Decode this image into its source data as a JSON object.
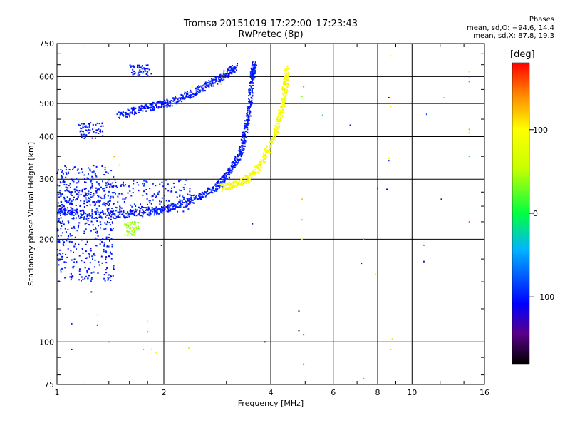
{
  "header": {
    "title_line1": "Tromsø 20151019 17:22:00–17:23:43",
    "title_line2": "RwPretec (8p)",
    "stats_title": "Phases",
    "stats_o": "mean, sd,O: −94.6, 14.4",
    "stats_x": "mean, sd,X:  87.8, 19.3"
  },
  "chart_data": {
    "type": "scatter",
    "xlabel": "Frequency [MHz]",
    "ylabel": "Stationary phase Virtual Height [km]",
    "xscale": "log",
    "yscale": "log",
    "xlim": [
      1,
      16
    ],
    "ylim": [
      75,
      750
    ],
    "xticks": [
      1,
      2,
      4,
      6,
      8,
      10,
      16
    ],
    "xtick_labels": [
      "1",
      "2",
      "4",
      "6",
      "8",
      "10",
      "16"
    ],
    "yticks": [
      75,
      100,
      200,
      300,
      400,
      500,
      600,
      750
    ],
    "ytick_labels": [
      "75",
      "100",
      "200",
      "300",
      "400",
      "500",
      "600",
      "750"
    ],
    "grid": true,
    "colorbar": {
      "label": "[deg]",
      "range": [
        -180,
        180
      ],
      "ticks": [
        -100,
        0,
        100
      ],
      "tick_labels": [
        "−100",
        "0",
        "100"
      ]
    },
    "traces": [
      {
        "name": "O-mode F-layer trace (low)",
        "phase": -100,
        "points": [
          [
            1.0,
            242
          ],
          [
            1.2,
            236
          ],
          [
            1.5,
            236
          ],
          [
            1.8,
            240
          ],
          [
            2.0,
            245
          ],
          [
            2.3,
            256
          ],
          [
            2.6,
            270
          ],
          [
            2.9,
            292
          ],
          [
            3.1,
            320
          ],
          [
            3.3,
            360
          ],
          [
            3.4,
            420
          ],
          [
            3.5,
            500
          ],
          [
            3.55,
            600
          ],
          [
            3.6,
            650
          ]
        ]
      },
      {
        "name": "O-mode trace (upper)",
        "phase": -100,
        "points": [
          [
            1.5,
            460
          ],
          [
            1.7,
            480
          ],
          [
            1.9,
            493
          ],
          [
            2.1,
            505
          ],
          [
            2.4,
            535
          ],
          [
            2.7,
            570
          ],
          [
            3.0,
            610
          ],
          [
            3.2,
            640
          ]
        ]
      },
      {
        "name": "X-mode trace",
        "phase": 95,
        "points": [
          [
            2.9,
            283
          ],
          [
            3.2,
            290
          ],
          [
            3.5,
            305
          ],
          [
            3.8,
            340
          ],
          [
            4.1,
            400
          ],
          [
            4.3,
            480
          ],
          [
            4.4,
            560
          ],
          [
            4.45,
            630
          ]
        ]
      }
    ],
    "clusters": [
      {
        "name": "low-frequency spread echoes",
        "phase": -100,
        "x": [
          1.0,
          1.45
        ],
        "y": [
          150,
          330
        ]
      },
      {
        "name": "spread echoes near 300 km",
        "phase": -100,
        "x": [
          1.0,
          2.4
        ],
        "y": [
          240,
          300
        ]
      },
      {
        "name": "patch near 400 km",
        "phase": -100,
        "x": [
          1.15,
          1.35
        ],
        "y": [
          395,
          440
        ]
      },
      {
        "name": "patch near 600 km",
        "phase": -100,
        "x": [
          1.6,
          1.85
        ],
        "y": [
          600,
          650
        ]
      },
      {
        "name": "patch near 210 km",
        "phase": 40,
        "x": [
          1.55,
          1.7
        ],
        "y": [
          205,
          225
        ]
      }
    ],
    "scattered_points": [
      [
        8.7,
        690,
        90
      ],
      [
        8.6,
        520,
        -120
      ],
      [
        8.7,
        490,
        110
      ],
      [
        8.6,
        345,
        60
      ],
      [
        8.6,
        340,
        -100
      ],
      [
        11.0,
        465,
        -80
      ],
      [
        12.3,
        520,
        40
      ],
      [
        14.5,
        620,
        60
      ],
      [
        14.5,
        600,
        -90
      ],
      [
        14.5,
        580,
        150
      ],
      [
        14.5,
        420,
        130
      ],
      [
        14.5,
        410,
        120
      ],
      [
        14.5,
        350,
        10
      ],
      [
        14.5,
        225,
        150
      ],
      [
        6.7,
        432,
        -140
      ],
      [
        8.0,
        282,
        -130
      ],
      [
        8.5,
        280,
        -110
      ],
      [
        12.1,
        262,
        -140
      ],
      [
        10.8,
        192,
        150
      ],
      [
        10.8,
        172,
        -130
      ],
      [
        7.3,
        200,
        -20
      ],
      [
        7.2,
        170,
        -110
      ],
      [
        7.9,
        158,
        100
      ],
      [
        4.95,
        560,
        -10
      ],
      [
        4.9,
        525,
        40
      ],
      [
        5.6,
        462,
        -10
      ],
      [
        4.9,
        262,
        120
      ],
      [
        4.9,
        228,
        30
      ],
      [
        4.9,
        200,
        110
      ],
      [
        3.55,
        222,
        -150
      ],
      [
        4.8,
        123,
        -150
      ],
      [
        4.8,
        108,
        -170
      ],
      [
        4.95,
        105,
        170
      ],
      [
        4.95,
        86,
        -20
      ],
      [
        3.85,
        100,
        -160
      ],
      [
        7.3,
        78,
        -10
      ],
      [
        8.8,
        102,
        110
      ],
      [
        8.7,
        95,
        120
      ],
      [
        1.1,
        113,
        -90
      ],
      [
        1.1,
        95,
        -110
      ],
      [
        1.4,
        100,
        150
      ],
      [
        1.3,
        120,
        100
      ],
      [
        1.25,
        140,
        -150
      ],
      [
        1.8,
        115,
        90
      ],
      [
        1.8,
        107,
        150
      ],
      [
        1.75,
        95,
        10
      ],
      [
        1.85,
        95,
        80
      ],
      [
        1.9,
        93,
        90
      ],
      [
        2.35,
        96,
        60
      ],
      [
        1.97,
        192,
        -160
      ],
      [
        1.45,
        350,
        130
      ],
      [
        1.5,
        330,
        80
      ],
      [
        2.4,
        560,
        90
      ],
      [
        2.9,
        570,
        80
      ],
      [
        1.3,
        112,
        -100
      ]
    ]
  }
}
